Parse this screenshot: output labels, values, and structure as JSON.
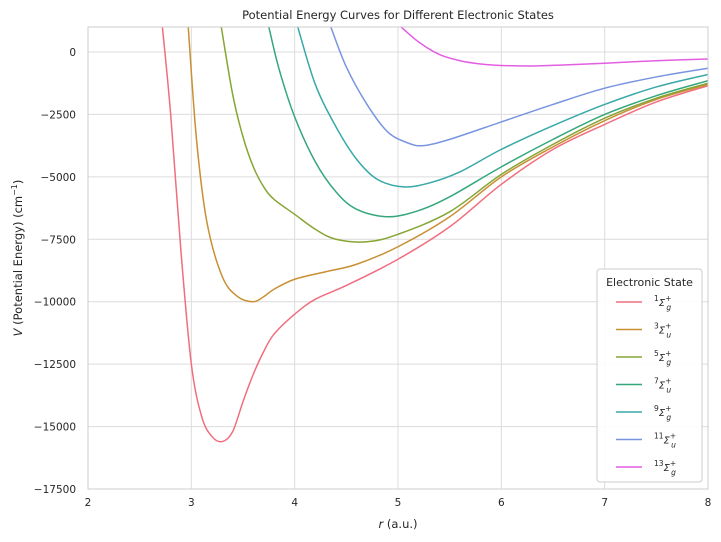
{
  "chart_data": {
    "type": "line",
    "title": "Potential Energy Curves for Different Electronic States",
    "xlabel_var": "r",
    "xlabel_unit": " (a.u.)",
    "ylabel_var": "V",
    "ylabel_text": " (Potential Energy) (cm",
    "ylabel_exp": "−1",
    "ylabel_close": ")",
    "xlim": [
      2,
      8
    ],
    "ylim": [
      -17500,
      1000
    ],
    "xticks": [
      2,
      3,
      4,
      5,
      6,
      7,
      8
    ],
    "yticks": [
      0,
      -2500,
      -5000,
      -7500,
      -10000,
      -12500,
      -15000,
      -17500
    ],
    "grid": true,
    "legend": {
      "title": "Electronic State",
      "placement": "lower-right"
    },
    "series": [
      {
        "name": "1Σg+",
        "mult": "1",
        "parity": "g",
        "color": "#f06e7e",
        "points": [
          [
            2.72,
            1000
          ],
          [
            2.8,
            -2500
          ],
          [
            2.9,
            -8000
          ],
          [
            3.0,
            -12500
          ],
          [
            3.1,
            -14600
          ],
          [
            3.2,
            -15400
          ],
          [
            3.3,
            -15600
          ],
          [
            3.4,
            -15200
          ],
          [
            3.5,
            -14000
          ],
          [
            3.6,
            -12900
          ],
          [
            3.7,
            -12000
          ],
          [
            3.8,
            -11300
          ],
          [
            4.0,
            -10500
          ],
          [
            4.2,
            -9900
          ],
          [
            4.5,
            -9350
          ],
          [
            5.0,
            -8300
          ],
          [
            5.5,
            -7000
          ],
          [
            6.0,
            -5300
          ],
          [
            6.5,
            -3900
          ],
          [
            7.0,
            -2900
          ],
          [
            7.5,
            -2000
          ],
          [
            8.0,
            -1350
          ]
        ]
      },
      {
        "name": "3Σu+",
        "mult": "3",
        "parity": "u",
        "color": "#c98f33",
        "points": [
          [
            2.97,
            1000
          ],
          [
            3.05,
            -3500
          ],
          [
            3.15,
            -6800
          ],
          [
            3.3,
            -9000
          ],
          [
            3.45,
            -9800
          ],
          [
            3.6,
            -10000
          ],
          [
            3.7,
            -9800
          ],
          [
            3.8,
            -9500
          ],
          [
            4.0,
            -9100
          ],
          [
            4.3,
            -8800
          ],
          [
            4.6,
            -8500
          ],
          [
            5.0,
            -7800
          ],
          [
            5.5,
            -6600
          ],
          [
            6.0,
            -5000
          ],
          [
            6.5,
            -3800
          ],
          [
            7.0,
            -2750
          ],
          [
            7.5,
            -1900
          ],
          [
            8.0,
            -1300
          ]
        ]
      },
      {
        "name": "5Σg+",
        "mult": "5",
        "parity": "g",
        "color": "#86a535",
        "points": [
          [
            3.29,
            1000
          ],
          [
            3.4,
            -1700
          ],
          [
            3.5,
            -3400
          ],
          [
            3.6,
            -4600
          ],
          [
            3.7,
            -5400
          ],
          [
            3.8,
            -5900
          ],
          [
            4.0,
            -6500
          ],
          [
            4.2,
            -7100
          ],
          [
            4.4,
            -7500
          ],
          [
            4.7,
            -7600
          ],
          [
            5.0,
            -7300
          ],
          [
            5.5,
            -6400
          ],
          [
            6.0,
            -4900
          ],
          [
            6.5,
            -3700
          ],
          [
            7.0,
            -2650
          ],
          [
            7.5,
            -1850
          ],
          [
            8.0,
            -1250
          ]
        ]
      },
      {
        "name": "7Σu+",
        "mult": "7",
        "parity": "u",
        "color": "#35a77b",
        "points": [
          [
            3.75,
            1000
          ],
          [
            3.85,
            -700
          ],
          [
            4.0,
            -2600
          ],
          [
            4.2,
            -4400
          ],
          [
            4.4,
            -5600
          ],
          [
            4.6,
            -6300
          ],
          [
            4.9,
            -6600
          ],
          [
            5.2,
            -6350
          ],
          [
            5.5,
            -5800
          ],
          [
            6.0,
            -4600
          ],
          [
            6.5,
            -3500
          ],
          [
            7.0,
            -2500
          ],
          [
            7.5,
            -1750
          ],
          [
            8.0,
            -1150
          ]
        ]
      },
      {
        "name": "9Σg+",
        "mult": "9",
        "parity": "g",
        "color": "#38a8a8",
        "points": [
          [
            4.03,
            1000
          ],
          [
            4.2,
            -1300
          ],
          [
            4.4,
            -3000
          ],
          [
            4.6,
            -4300
          ],
          [
            4.8,
            -5100
          ],
          [
            5.05,
            -5400
          ],
          [
            5.3,
            -5250
          ],
          [
            5.6,
            -4800
          ],
          [
            6.0,
            -3900
          ],
          [
            6.5,
            -2950
          ],
          [
            7.0,
            -2100
          ],
          [
            7.5,
            -1400
          ],
          [
            8.0,
            -900
          ]
        ]
      },
      {
        "name": "11Σu+",
        "mult": "11",
        "parity": "u",
        "color": "#7a95e0",
        "points": [
          [
            4.35,
            1000
          ],
          [
            4.5,
            -600
          ],
          [
            4.7,
            -2100
          ],
          [
            4.9,
            -3200
          ],
          [
            5.1,
            -3650
          ],
          [
            5.25,
            -3750
          ],
          [
            5.5,
            -3500
          ],
          [
            6.0,
            -2800
          ],
          [
            6.5,
            -2100
          ],
          [
            7.0,
            -1450
          ],
          [
            7.5,
            -1000
          ],
          [
            8.0,
            -650
          ]
        ]
      },
      {
        "name": "13Σg+",
        "mult": "13",
        "parity": "g",
        "color": "#e45ee2",
        "points": [
          [
            5.03,
            1000
          ],
          [
            5.2,
            400
          ],
          [
            5.4,
            -100
          ],
          [
            5.6,
            -350
          ],
          [
            5.8,
            -480
          ],
          [
            6.0,
            -540
          ],
          [
            6.3,
            -560
          ],
          [
            6.6,
            -520
          ],
          [
            7.0,
            -450
          ],
          [
            7.5,
            -350
          ],
          [
            8.0,
            -280
          ]
        ]
      }
    ]
  }
}
